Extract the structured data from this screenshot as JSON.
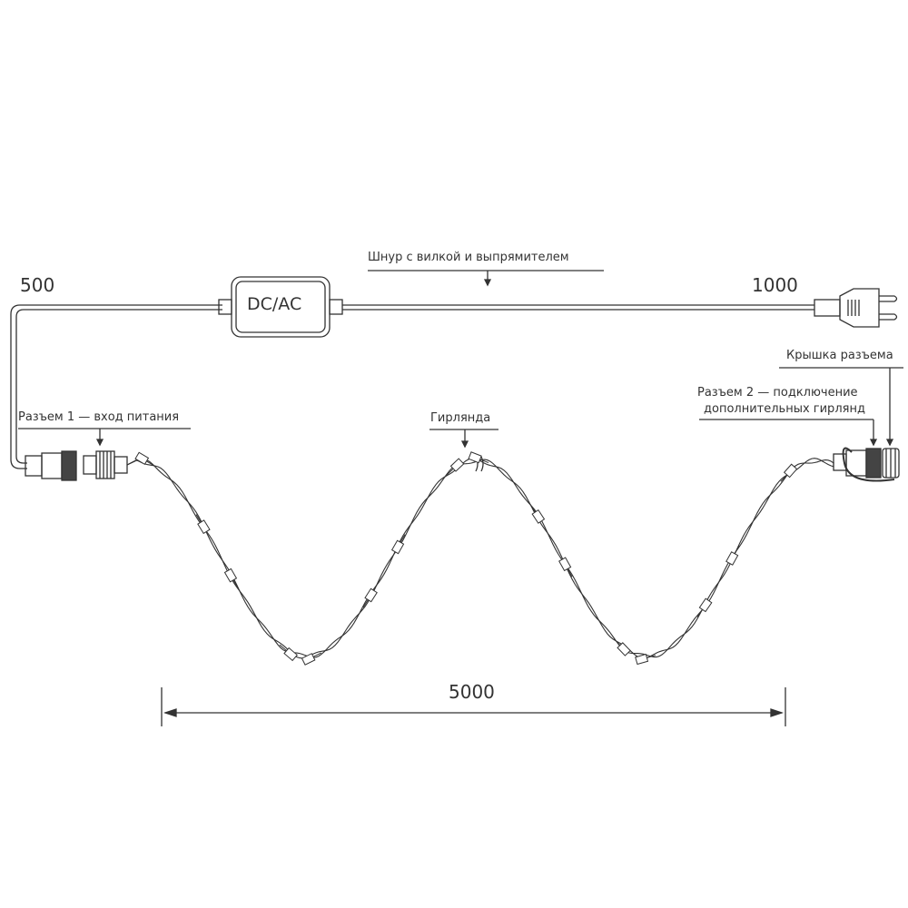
{
  "labels": {
    "cord": "Шнур с вилкой и выпрямителем",
    "rectifier": "DC/AC",
    "left_length": "500",
    "right_length": "1000",
    "connector1": "Разъем 1 — вход питания",
    "garland": "Гирлянда",
    "cap": "Крышка разъема",
    "connector2_line1": "Разъем 2 — подключение",
    "connector2_line2": "дополнительных гирлянд",
    "garland_length": "5000"
  },
  "colors": {
    "line": "#333333",
    "background": "#ffffff"
  }
}
